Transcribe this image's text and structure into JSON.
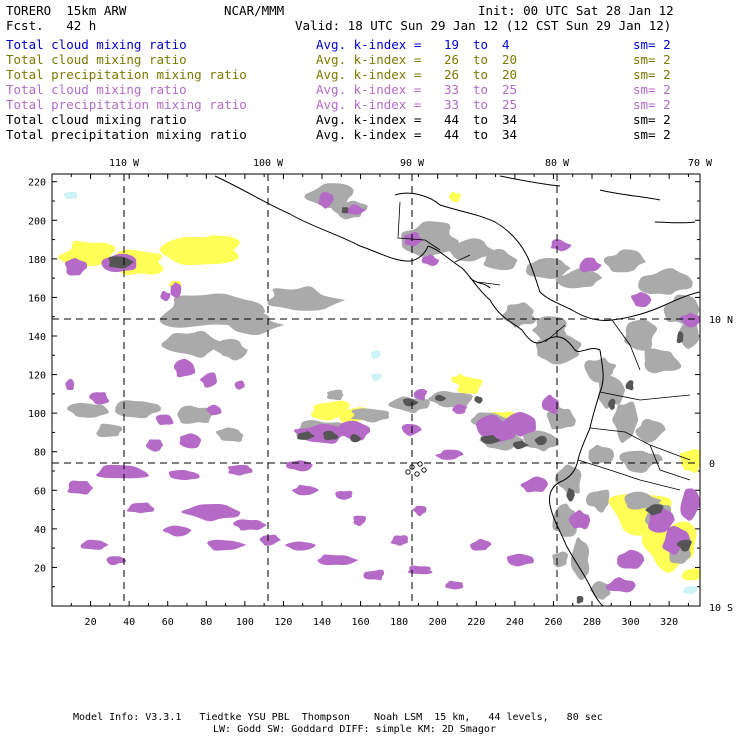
{
  "header": {
    "model": "TORERO  15km ARW",
    "org": "NCAR/MMM",
    "init": "Init: 00 UTC Sat 28 Jan 12",
    "fcst": "Fcst.   42 h",
    "valid": "Valid: 18 UTC Sun 29 Jan 12 (12 CST Sun 29 Jan 12)"
  },
  "legend": [
    {
      "field": "Total cloud mixing ratio",
      "stat": "Avg. k-index =",
      "k_from": "19",
      "k_to": "4",
      "sm": "sm= 2",
      "color": "#0000cc"
    },
    {
      "field": "Total cloud mixing ratio",
      "stat": "Avg. k-index =",
      "k_from": "26",
      "k_to": "20",
      "sm": "sm= 2",
      "color": "#7a7a00"
    },
    {
      "field": "Total precipitation mixing ratio",
      "stat": "Avg. k-index =",
      "k_from": "26",
      "k_to": "20",
      "sm": "sm= 2",
      "color": "#7a7a00"
    },
    {
      "field": "Total cloud mixing ratio",
      "stat": "Avg. k-index =",
      "k_from": "33",
      "k_to": "25",
      "sm": "sm= 2",
      "color": "#b36bc8"
    },
    {
      "field": "Total precipitation mixing ratio",
      "stat": "Avg. k-index =",
      "k_from": "33",
      "k_to": "25",
      "sm": "sm= 2",
      "color": "#b36bc8"
    },
    {
      "field": "Total cloud mixing ratio",
      "stat": "Avg. k-index =",
      "k_from": "44",
      "k_to": "34",
      "sm": "sm= 2",
      "color": "#000000"
    },
    {
      "field": "Total precipitation mixing ratio",
      "stat": "Avg. k-index =",
      "k_from": "44",
      "k_to": "34",
      "sm": "sm= 2",
      "color": "#000000"
    }
  ],
  "map": {
    "lon_labels": [
      "110 W",
      "100 W",
      "90 W",
      "80 W",
      "70 W"
    ],
    "lat_labels": [
      "10 N",
      "0",
      "10 S"
    ],
    "x_ticks": [
      "20",
      "40",
      "60",
      "80",
      "100",
      "120",
      "140",
      "160",
      "180",
      "200",
      "220",
      "240",
      "260",
      "280",
      "300",
      "320"
    ],
    "y_ticks": [
      "220",
      "200",
      "180",
      "160",
      "140",
      "120",
      "100",
      "80",
      "60",
      "40",
      "20"
    ],
    "colors": {
      "gray": "#aaaaaa",
      "yellow": "#ffff55",
      "purple": "#b46ac6",
      "dark": "#555555",
      "cyan": "#ccf3f6",
      "coast": "#000000"
    }
  },
  "footer": {
    "line1": "Model Info: V3.3.1   Tiedtke YSU PBL  Thompson    Noah LSM  15 km,   44 levels,   80 sec",
    "line2": "LW: Godd SW: Goddard DIFF: simple KM: 2D Smagor"
  }
}
